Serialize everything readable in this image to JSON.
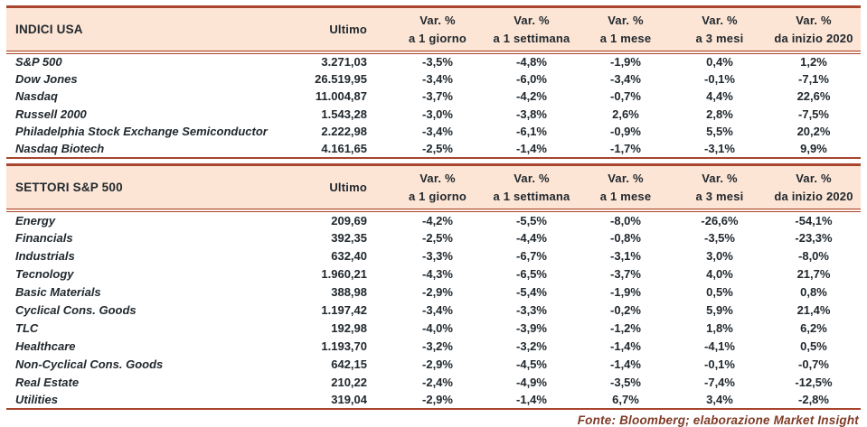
{
  "colors": {
    "header-bg": "#fce5d5",
    "border": "#a8452c",
    "text": "#21282e",
    "footer-text": "#7f3b27"
  },
  "columns": {
    "ultimo": "Ultimo",
    "var_label": "Var. %",
    "var_periods": [
      "a 1 giorno",
      "a 1 settimana",
      "a 1 mese",
      "a 3 mesi",
      "da inizio 2020"
    ]
  },
  "tables": [
    {
      "title": "INDICI USA",
      "rows": [
        {
          "name": "S&P 500",
          "ultimo": "3.271,03",
          "vars": [
            "-3,5%",
            "-4,8%",
            "-1,9%",
            "0,4%",
            "1,2%"
          ]
        },
        {
          "name": "Dow Jones",
          "ultimo": "26.519,95",
          "vars": [
            "-3,4%",
            "-6,0%",
            "-3,4%",
            "-0,1%",
            "-7,1%"
          ]
        },
        {
          "name": "Nasdaq",
          "ultimo": "11.004,87",
          "vars": [
            "-3,7%",
            "-4,2%",
            "-0,7%",
            "4,4%",
            "22,6%"
          ]
        },
        {
          "name": "Russell 2000",
          "ultimo": "1.543,28",
          "vars": [
            "-3,0%",
            "-3,8%",
            "2,6%",
            "2,8%",
            "-7,5%"
          ]
        },
        {
          "name": "Philadelphia Stock Exchange Semiconductor",
          "ultimo": "2.222,98",
          "vars": [
            "-3,4%",
            "-6,1%",
            "-0,9%",
            "5,5%",
            "20,2%"
          ]
        },
        {
          "name": "Nasdaq Biotech",
          "ultimo": "4.161,65",
          "vars": [
            "-2,5%",
            "-1,4%",
            "-1,7%",
            "-3,1%",
            "9,9%"
          ]
        }
      ]
    },
    {
      "title": "SETTORI S&P 500",
      "rows": [
        {
          "name": "Energy",
          "ultimo": "209,69",
          "vars": [
            "-4,2%",
            "-5,5%",
            "-8,0%",
            "-26,6%",
            "-54,1%"
          ]
        },
        {
          "name": "Financials",
          "ultimo": "392,35",
          "vars": [
            "-2,5%",
            "-4,4%",
            "-0,8%",
            "-3,5%",
            "-23,3%"
          ]
        },
        {
          "name": "Industrials",
          "ultimo": "632,40",
          "vars": [
            "-3,3%",
            "-6,7%",
            "-3,1%",
            "3,0%",
            "-8,0%"
          ]
        },
        {
          "name": "Tecnology",
          "ultimo": "1.960,21",
          "vars": [
            "-4,3%",
            "-6,5%",
            "-3,7%",
            "4,0%",
            "21,7%"
          ]
        },
        {
          "name": "Basic Materials",
          "ultimo": "388,98",
          "vars": [
            "-2,9%",
            "-5,4%",
            "-1,9%",
            "0,5%",
            "0,8%"
          ]
        },
        {
          "name": "Cyclical Cons. Goods",
          "ultimo": "1.197,42",
          "vars": [
            "-3,4%",
            "-3,3%",
            "-0,2%",
            "5,9%",
            "21,4%"
          ]
        },
        {
          "name": "TLC",
          "ultimo": "192,98",
          "vars": [
            "-4,0%",
            "-3,9%",
            "-1,2%",
            "1,8%",
            "6,2%"
          ]
        },
        {
          "name": "Healthcare",
          "ultimo": "1.193,70",
          "vars": [
            "-3,2%",
            "-3,2%",
            "-1,4%",
            "-4,1%",
            "0,5%"
          ]
        },
        {
          "name": "Non-Cyclical Cons. Goods",
          "ultimo": "642,15",
          "vars": [
            "-2,9%",
            "-4,5%",
            "-1,4%",
            "-0,1%",
            "-0,7%"
          ]
        },
        {
          "name": "Real Estate",
          "ultimo": "210,22",
          "vars": [
            "-2,4%",
            "-4,9%",
            "-3,5%",
            "-7,4%",
            "-12,5%"
          ]
        },
        {
          "name": "Utilities",
          "ultimo": "319,04",
          "vars": [
            "-2,9%",
            "-1,4%",
            "6,7%",
            "3,4%",
            "-2,8%"
          ]
        }
      ]
    }
  ],
  "footer": "Fonte: Bloomberg; elaborazione Market Insight"
}
